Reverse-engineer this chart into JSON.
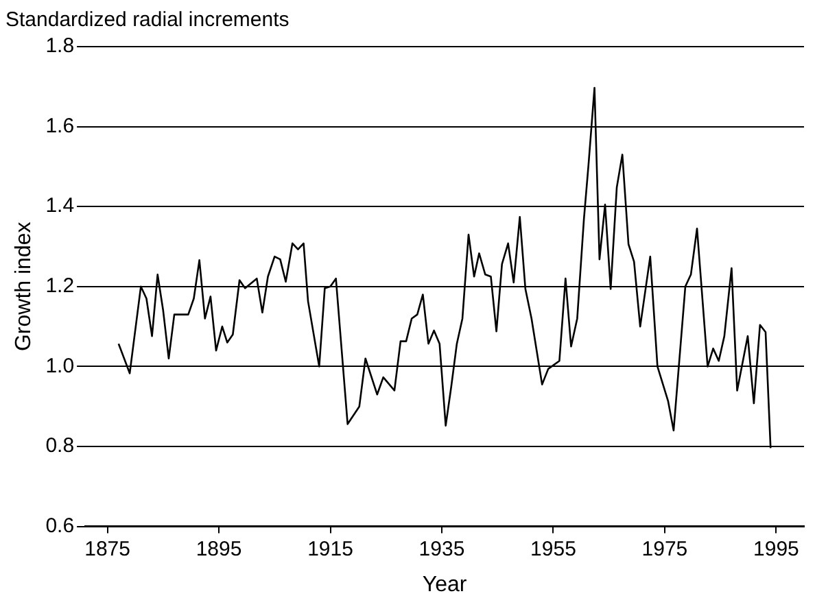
{
  "chart_data": {
    "type": "line",
    "title": "Standardized radial increments",
    "xlabel": "Year",
    "ylabel": "Growth index",
    "xlim": [
      1871,
      2000
    ],
    "xticks": [
      1875,
      1895,
      1915,
      1935,
      1955,
      1975,
      1995
    ],
    "ylim": [
      0.6,
      1.8
    ],
    "yticks": [
      0.6,
      0.8,
      {
        "value": 1,
        "label": "1.0"
      },
      1.2,
      1.4,
      1.6,
      1.8
    ],
    "grid": "y",
    "legend": false,
    "marker": "none",
    "line_style": "solid",
    "series": [
      {
        "color": "#000000",
        "x": [
          1877,
          1879,
          1881,
          1882,
          1883,
          1884,
          1885,
          1886,
          1887,
          1889.5,
          1890.5,
          1891.5,
          1892.5,
          1893.5,
          1894.5,
          1895.6,
          1896.5,
          1897.5,
          1898.7,
          1899.7,
          1901.8,
          1902.8,
          1903.8,
          1905,
          1906,
          1907,
          1908.2,
          1909.2,
          1910.2,
          1911,
          1913,
          1914,
          1915,
          1916,
          1918.1,
          1920.2,
          1921.3,
          1923.4,
          1924.5,
          1926.5,
          1927.6,
          1928.6,
          1929.6,
          1930.6,
          1931.6,
          1932.6,
          1933.6,
          1934.6,
          1935.7,
          1936.7,
          1937.7,
          1938.7,
          1939.8,
          1940.8,
          1941.7,
          1942.8,
          1943.8,
          1944.8,
          1945.8,
          1946.9,
          1947.9,
          1949,
          1950,
          1951.1,
          1953,
          1954.1,
          1956.1,
          1957.2,
          1958.2,
          1959.3,
          1960.5,
          1961.3,
          1962.4,
          1963.3,
          1964.3,
          1965.3,
          1966.4,
          1967.4,
          1968.5,
          1969.5,
          1970.6,
          1972.4,
          1973.7,
          1975.6,
          1976.6,
          1978.7,
          1979.7,
          1980.8,
          1982.7,
          1983.7,
          1984.7,
          1985.7,
          1987,
          1988,
          1989.9,
          1991,
          1992.1,
          1993.1,
          1994
        ],
        "values": [
          1.057,
          0.983,
          1.2,
          1.17,
          1.076,
          1.23,
          1.14,
          1.02,
          1.13,
          1.13,
          1.17,
          1.266,
          1.12,
          1.175,
          1.04,
          1.1,
          1.06,
          1.08,
          1.216,
          1.196,
          1.22,
          1.135,
          1.225,
          1.275,
          1.268,
          1.212,
          1.308,
          1.293,
          1.308,
          1.163,
          1.0,
          1.196,
          1.2,
          1.22,
          0.856,
          0.9,
          1.02,
          0.93,
          0.973,
          0.94,
          1.063,
          1.063,
          1.12,
          1.13,
          1.18,
          1.057,
          1.09,
          1.057,
          0.852,
          0.95,
          1.057,
          1.12,
          1.33,
          1.225,
          1.283,
          1.23,
          1.225,
          1.088,
          1.256,
          1.308,
          1.21,
          1.374,
          1.194,
          1.12,
          0.955,
          0.994,
          1.014,
          1.22,
          1.05,
          1.12,
          1.368,
          1.5,
          1.697,
          1.268,
          1.405,
          1.194,
          1.448,
          1.53,
          1.306,
          1.262,
          1.1,
          1.275,
          1.0,
          0.914,
          0.84,
          1.2,
          1.23,
          1.345,
          1.0,
          1.045,
          1.014,
          1.076,
          1.246,
          0.94,
          1.076,
          0.908,
          1.104,
          1.086,
          0.796
        ]
      }
    ]
  }
}
